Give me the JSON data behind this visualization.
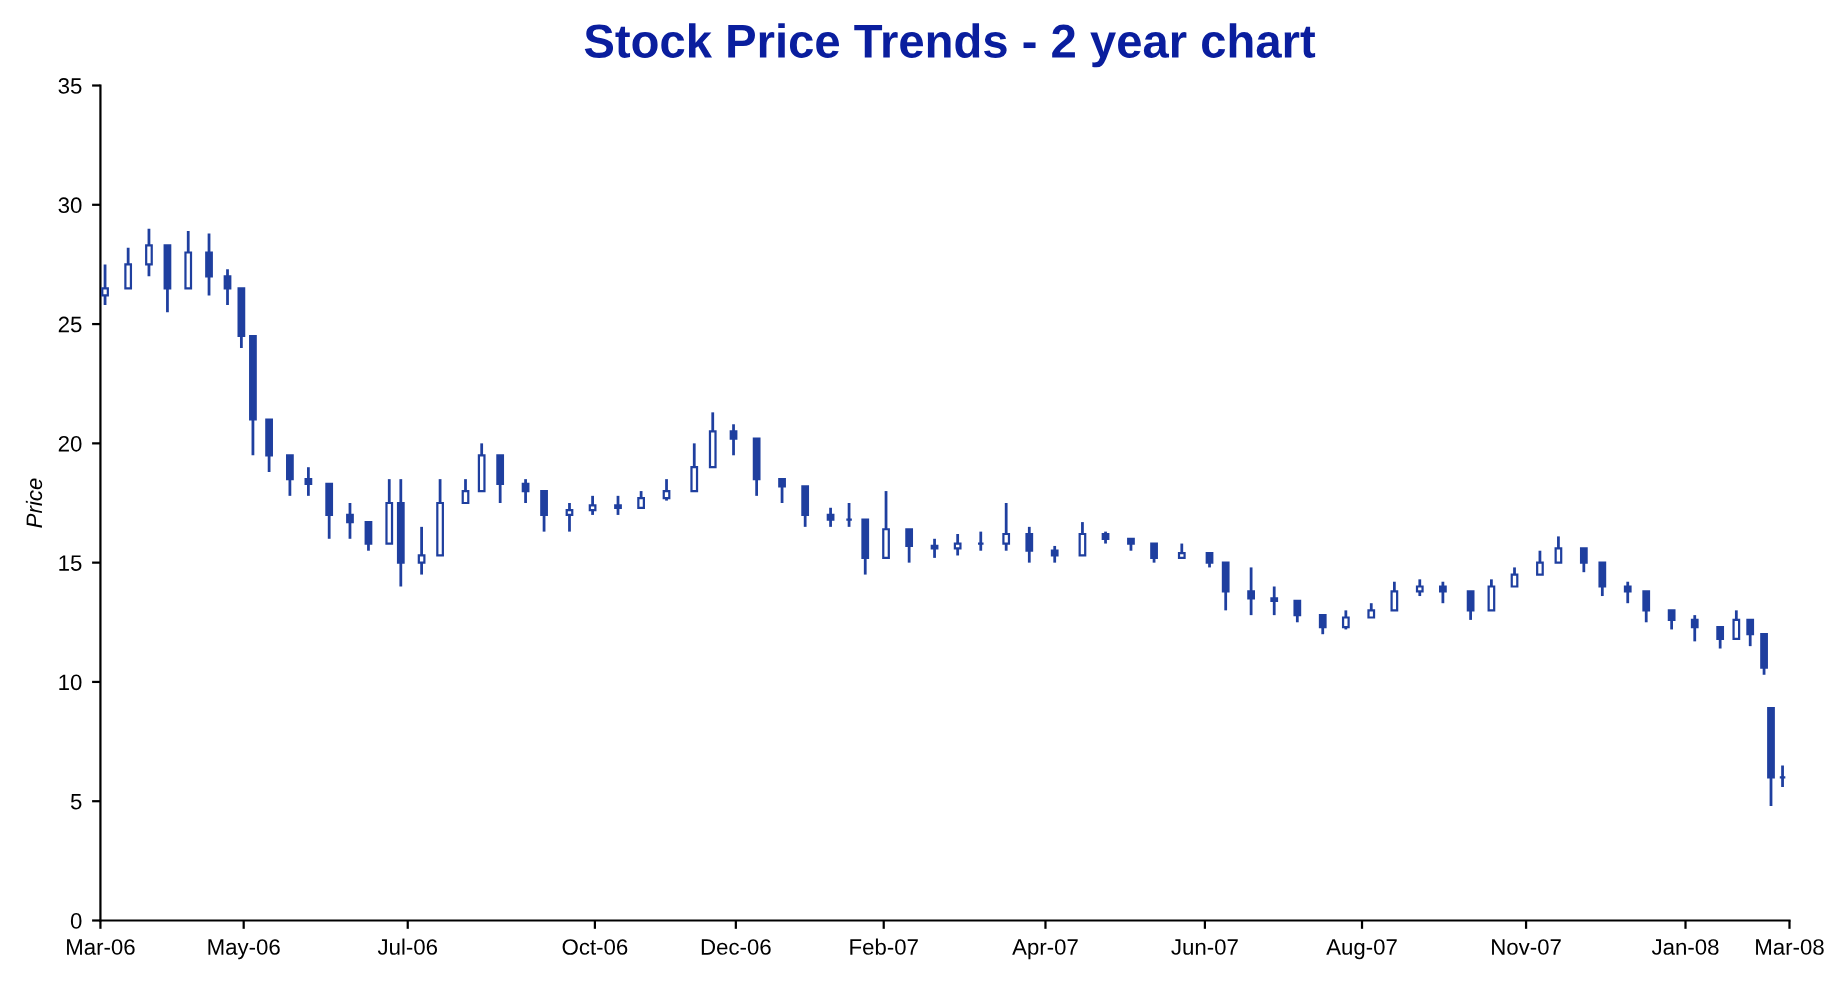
{
  "chart_data": {
    "type": "candlestick",
    "title": "Stock Price Trends - 2 year chart",
    "ylabel": "Price",
    "color": "#1f3f9f",
    "grid": false,
    "legend": false,
    "x": [
      "2006-03-03",
      "2006-03-13",
      "2006-03-22",
      "2006-03-30",
      "2006-04-08",
      "2006-04-17",
      "2006-04-25",
      "2006-05-01",
      "2006-05-06",
      "2006-05-13",
      "2006-05-22",
      "2006-05-30",
      "2006-06-08",
      "2006-06-17",
      "2006-06-25",
      "2006-07-04",
      "2006-07-09",
      "2006-07-18",
      "2006-07-26",
      "2006-08-06",
      "2006-08-13",
      "2006-08-21",
      "2006-09-01",
      "2006-09-09",
      "2006-09-20",
      "2006-09-30",
      "2006-10-11",
      "2006-10-21",
      "2006-11-01",
      "2006-11-13",
      "2006-11-21",
      "2006-11-30",
      "2006-12-10",
      "2006-12-21",
      "2006-12-31",
      "2007-01-11",
      "2007-01-19",
      "2007-01-26",
      "2007-02-04",
      "2007-02-14",
      "2007-02-25",
      "2007-03-07",
      "2007-03-17",
      "2007-03-28",
      "2007-04-07",
      "2007-04-18",
      "2007-04-30",
      "2007-05-10",
      "2007-05-21",
      "2007-05-31",
      "2007-06-12",
      "2007-06-24",
      "2007-07-01",
      "2007-07-12",
      "2007-07-22",
      "2007-08-01",
      "2007-08-12",
      "2007-08-22",
      "2007-09-02",
      "2007-09-12",
      "2007-09-23",
      "2007-10-03",
      "2007-10-15",
      "2007-10-24",
      "2007-11-03",
      "2007-11-14",
      "2007-11-22",
      "2007-12-03",
      "2007-12-11",
      "2007-12-22",
      "2007-12-30",
      "2008-01-10",
      "2008-01-20",
      "2008-01-31",
      "2008-02-07",
      "2008-02-13",
      "2008-02-19",
      "2008-02-22",
      "2008-02-27"
    ],
    "ohlc": [
      [
        26.2,
        27.5,
        25.8,
        26.5
      ],
      [
        26.5,
        28.2,
        26.5,
        27.5
      ],
      [
        27.5,
        29,
        27,
        28.3
      ],
      [
        28.3,
        28.3,
        25.5,
        26.5
      ],
      [
        26.5,
        28.9,
        26.5,
        28
      ],
      [
        28,
        28.8,
        26.2,
        27
      ],
      [
        27,
        27.3,
        25.8,
        26.5
      ],
      [
        26.5,
        26.5,
        24,
        24.5
      ],
      [
        24.5,
        24.5,
        19.5,
        21
      ],
      [
        21,
        21,
        18.8,
        19.5
      ],
      [
        19.5,
        19.5,
        17.8,
        18.5
      ],
      [
        18.5,
        19,
        17.8,
        18.3
      ],
      [
        18.3,
        18.3,
        16,
        17
      ],
      [
        17,
        17.5,
        16,
        16.7
      ],
      [
        16.7,
        16.7,
        15.5,
        15.8
      ],
      [
        15.8,
        18.5,
        15.8,
        17.5
      ],
      [
        17.5,
        18.5,
        14,
        15
      ],
      [
        15,
        16.5,
        14.5,
        15.3
      ],
      [
        15.3,
        18.5,
        15.3,
        17.5
      ],
      [
        17.5,
        18.5,
        17.5,
        18
      ],
      [
        18,
        20,
        18,
        19.5
      ],
      [
        19.5,
        19.5,
        17.5,
        18.3
      ],
      [
        18.3,
        18.5,
        17.5,
        18
      ],
      [
        18,
        18,
        16.3,
        17
      ],
      [
        17,
        17.5,
        16.3,
        17.2
      ],
      [
        17.2,
        17.8,
        17,
        17.4
      ],
      [
        17.4,
        17.8,
        17,
        17.3
      ],
      [
        17.3,
        18,
        17.3,
        17.7
      ],
      [
        17.7,
        18.5,
        17.6,
        18
      ],
      [
        18,
        20,
        18,
        19
      ],
      [
        19,
        21.3,
        19,
        20.5
      ],
      [
        20.5,
        20.8,
        19.5,
        20.2
      ],
      [
        20.2,
        20.2,
        17.8,
        18.5
      ],
      [
        18.5,
        18.5,
        17.5,
        18.2
      ],
      [
        18.2,
        18.2,
        16.5,
        17
      ],
      [
        17,
        17.3,
        16.5,
        16.8
      ],
      [
        16.8,
        17.5,
        16.5,
        16.8
      ],
      [
        16.8,
        16.8,
        14.5,
        15.2
      ],
      [
        15.2,
        18,
        15.2,
        16.4
      ],
      [
        16.4,
        16.4,
        15,
        15.7
      ],
      [
        15.7,
        16,
        15.2,
        15.6
      ],
      [
        15.6,
        16.2,
        15.3,
        15.8
      ],
      [
        15.8,
        16.3,
        15.5,
        15.8
      ],
      [
        15.8,
        17.5,
        15.5,
        16.2
      ],
      [
        16.2,
        16.5,
        15,
        15.5
      ],
      [
        15.5,
        15.7,
        15,
        15.3
      ],
      [
        15.3,
        16.7,
        15.3,
        16.2
      ],
      [
        16.2,
        16.3,
        15.8,
        16
      ],
      [
        16,
        16,
        15.5,
        15.8
      ],
      [
        15.8,
        15.8,
        15,
        15.2
      ],
      [
        15.2,
        15.8,
        15.2,
        15.4
      ],
      [
        15.4,
        15.4,
        14.8,
        15
      ],
      [
        15,
        15,
        13,
        13.8
      ],
      [
        13.8,
        14.8,
        12.8,
        13.5
      ],
      [
        13.5,
        14,
        12.8,
        13.4
      ],
      [
        13.4,
        13.4,
        12.5,
        12.8
      ],
      [
        12.8,
        12.8,
        12,
        12.3
      ],
      [
        12.3,
        13,
        12.2,
        12.7
      ],
      [
        12.7,
        13.3,
        12.7,
        13
      ],
      [
        13,
        14.2,
        13,
        13.8
      ],
      [
        13.8,
        14.3,
        13.6,
        14
      ],
      [
        14,
        14.2,
        13.3,
        13.8
      ],
      [
        13.8,
        13.8,
        12.6,
        13
      ],
      [
        13,
        14.3,
        13,
        14
      ],
      [
        14,
        14.8,
        14,
        14.5
      ],
      [
        14.5,
        15.5,
        14.5,
        15
      ],
      [
        15,
        16.1,
        15,
        15.6
      ],
      [
        15.6,
        15.6,
        14.6,
        15
      ],
      [
        15,
        15,
        13.6,
        14
      ],
      [
        14,
        14.2,
        13.3,
        13.8
      ],
      [
        13.8,
        13.8,
        12.5,
        13
      ],
      [
        13,
        13,
        12.2,
        12.6
      ],
      [
        12.6,
        12.8,
        11.7,
        12.3
      ],
      [
        12.3,
        12.3,
        11.4,
        11.8
      ],
      [
        11.8,
        13,
        11.8,
        12.6
      ],
      [
        12.6,
        12.6,
        11.5,
        12
      ],
      [
        12,
        12,
        10.3,
        10.6
      ],
      [
        8.9,
        8.9,
        4.8,
        6
      ],
      [
        6,
        6.5,
        5.6,
        6
      ]
    ],
    "xlim": [
      "2006-03-01",
      "2008-03-01"
    ],
    "xticks": [
      {
        "value": "2006-03-01",
        "label": "Mar-06"
      },
      {
        "value": "2006-05-02",
        "label": "May-06"
      },
      {
        "value": "2006-07-12",
        "label": "Jul-06"
      },
      {
        "value": "2006-10-01",
        "label": "Oct-06"
      },
      {
        "value": "2006-12-01",
        "label": "Dec-06"
      },
      {
        "value": "2007-02-03",
        "label": "Feb-07"
      },
      {
        "value": "2007-04-14",
        "label": "Apr-07"
      },
      {
        "value": "2007-06-22",
        "label": "Jun-07"
      },
      {
        "value": "2007-08-29",
        "label": "Aug-07"
      },
      {
        "value": "2007-11-08",
        "label": "Nov-07"
      },
      {
        "value": "2008-01-16",
        "label": "Jan-08"
      },
      {
        "value": "2008-03-01",
        "label": "Mar-08"
      }
    ],
    "ylim": [
      0,
      35
    ],
    "yticks": [
      0,
      5,
      10,
      15,
      20,
      25,
      30,
      35
    ]
  }
}
